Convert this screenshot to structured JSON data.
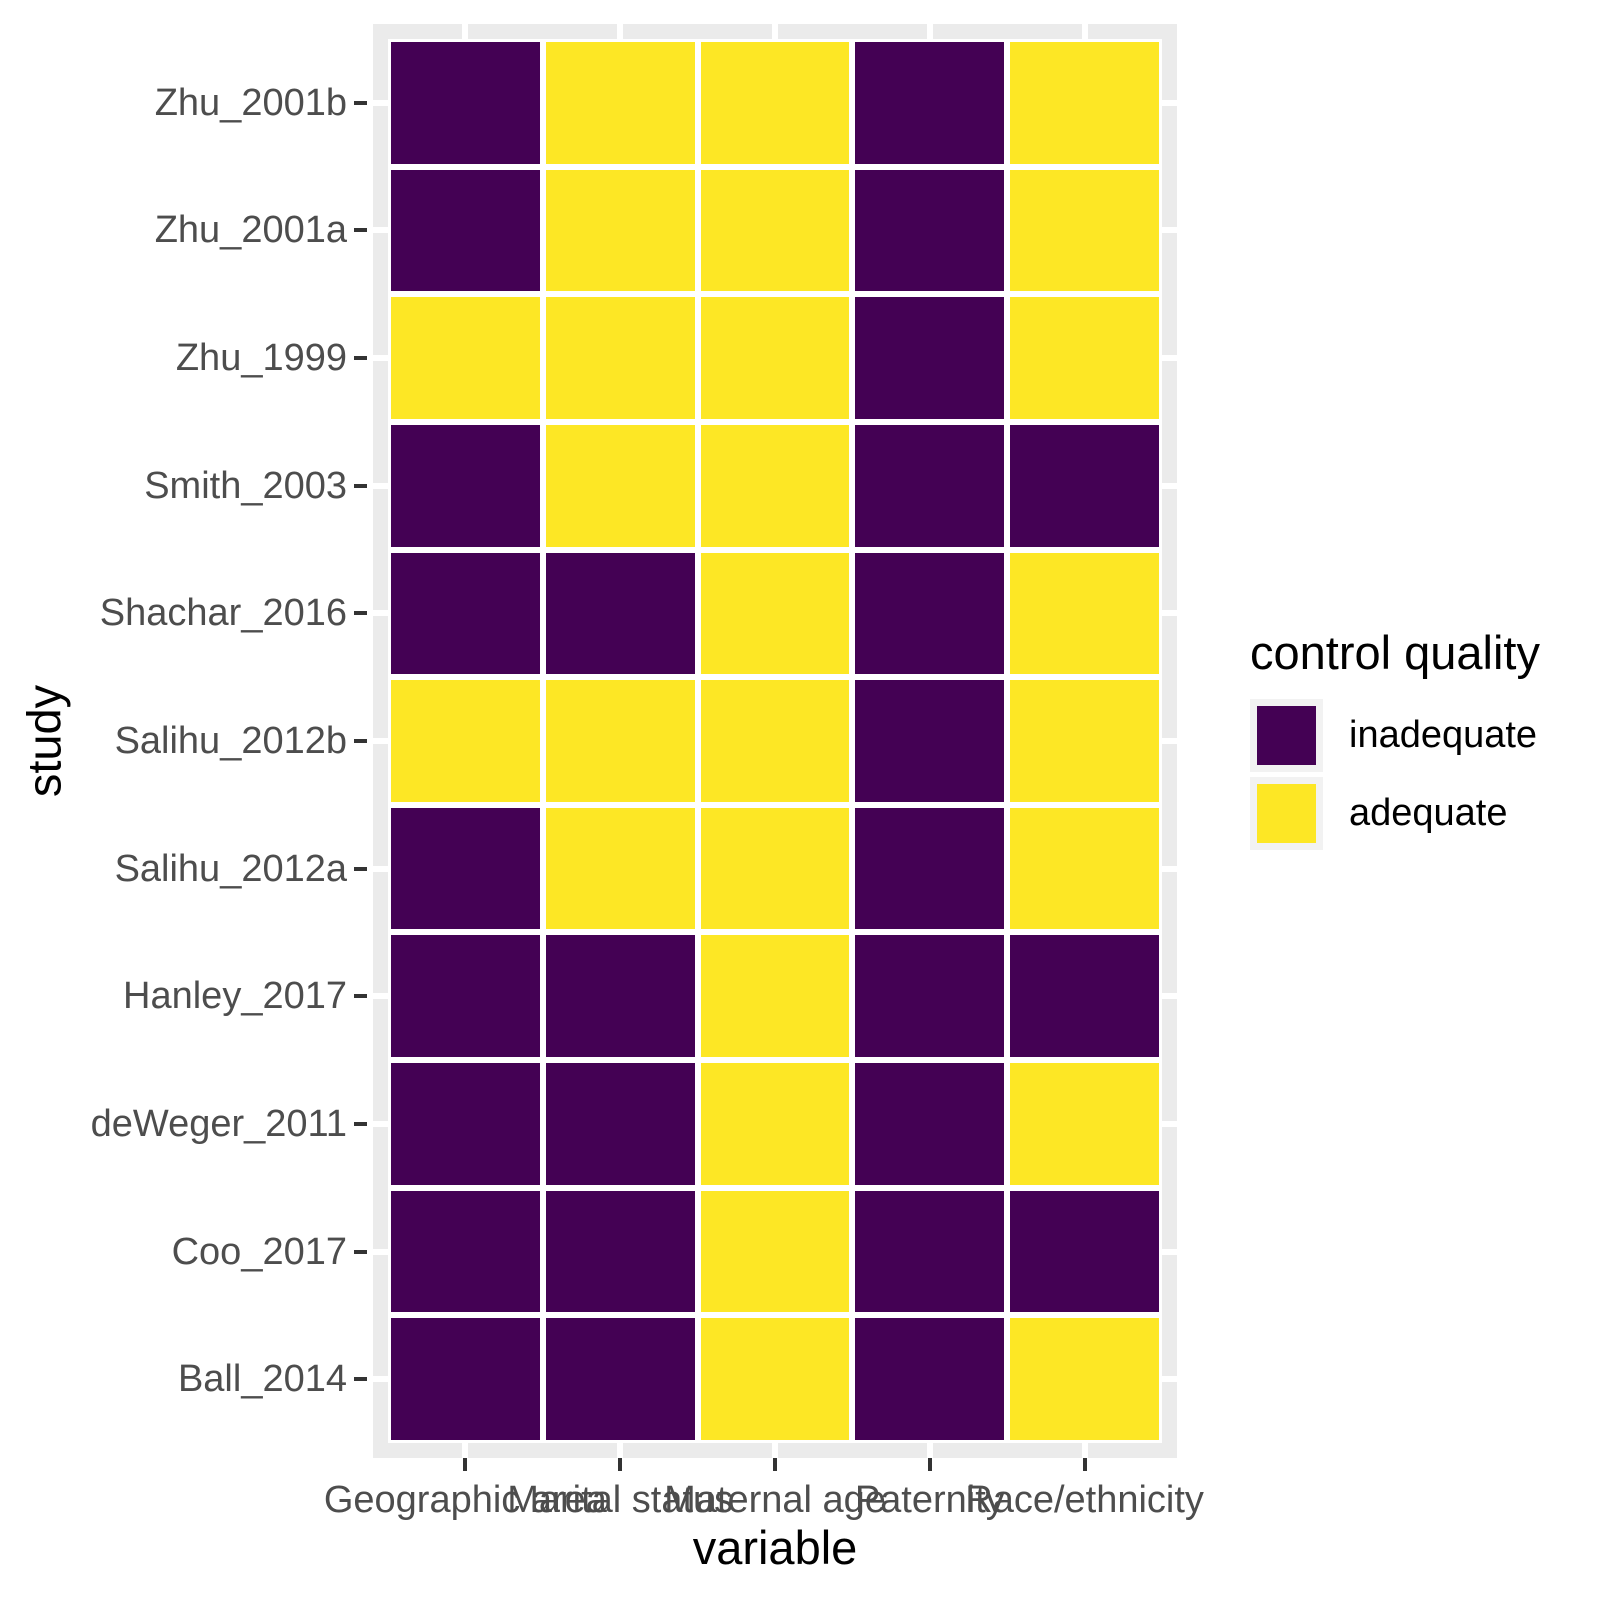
{
  "figure": {
    "background": "#FFFFFF",
    "panel_background": "#EBEBEB",
    "gridline_color": "#FFFFFF",
    "tick_color": "#333333",
    "tick_label_color": "#4D4D4D",
    "axis_title_color": "#000000"
  },
  "chart_data": {
    "type": "heatmap",
    "title": "",
    "xlabel": "variable",
    "ylabel": "study",
    "x_categories": [
      "Geographic area",
      "Marital status",
      "Maternal age",
      "Paternity",
      "Race/ethnicity"
    ],
    "y_categories_top_to_bottom": [
      "Zhu_2001b",
      "Zhu_2001a",
      "Zhu_1999",
      "Smith_2003",
      "Shachar_2016",
      "Salihu_2012b",
      "Salihu_2012a",
      "Hanley_2017",
      "deWeger_2011",
      "Coo_2017",
      "Ball_2014"
    ],
    "value_levels": [
      "inadequate",
      "adequate"
    ],
    "colors": {
      "inadequate": "#440154",
      "adequate": "#FDE725"
    },
    "rows": [
      {
        "study": "Zhu_2001b",
        "values": [
          "inadequate",
          "adequate",
          "adequate",
          "inadequate",
          "adequate"
        ]
      },
      {
        "study": "Zhu_2001a",
        "values": [
          "inadequate",
          "adequate",
          "adequate",
          "inadequate",
          "adequate"
        ]
      },
      {
        "study": "Zhu_1999",
        "values": [
          "adequate",
          "adequate",
          "adequate",
          "inadequate",
          "adequate"
        ]
      },
      {
        "study": "Smith_2003",
        "values": [
          "inadequate",
          "adequate",
          "adequate",
          "inadequate",
          "inadequate"
        ]
      },
      {
        "study": "Shachar_2016",
        "values": [
          "inadequate",
          "inadequate",
          "adequate",
          "inadequate",
          "adequate"
        ]
      },
      {
        "study": "Salihu_2012b",
        "values": [
          "adequate",
          "adequate",
          "adequate",
          "inadequate",
          "adequate"
        ]
      },
      {
        "study": "Salihu_2012a",
        "values": [
          "inadequate",
          "adequate",
          "adequate",
          "inadequate",
          "adequate"
        ]
      },
      {
        "study": "Hanley_2017",
        "values": [
          "inadequate",
          "inadequate",
          "adequate",
          "inadequate",
          "inadequate"
        ]
      },
      {
        "study": "deWeger_2011",
        "values": [
          "inadequate",
          "inadequate",
          "adequate",
          "inadequate",
          "adequate"
        ]
      },
      {
        "study": "Coo_2017",
        "values": [
          "inadequate",
          "inadequate",
          "adequate",
          "inadequate",
          "inadequate"
        ]
      },
      {
        "study": "Ball_2014",
        "values": [
          "inadequate",
          "inadequate",
          "adequate",
          "inadequate",
          "adequate"
        ]
      }
    ],
    "legend": {
      "title": "control quality",
      "position": "right",
      "entries": [
        {
          "label": "inadequate",
          "color": "#440154"
        },
        {
          "label": "adequate",
          "color": "#FDE725"
        }
      ]
    },
    "axis_ranges": {
      "x": "discrete (5 categories)",
      "y": "discrete (11 categories)"
    },
    "grid": "white major gridlines on gray panel, visible only at panel margins"
  }
}
